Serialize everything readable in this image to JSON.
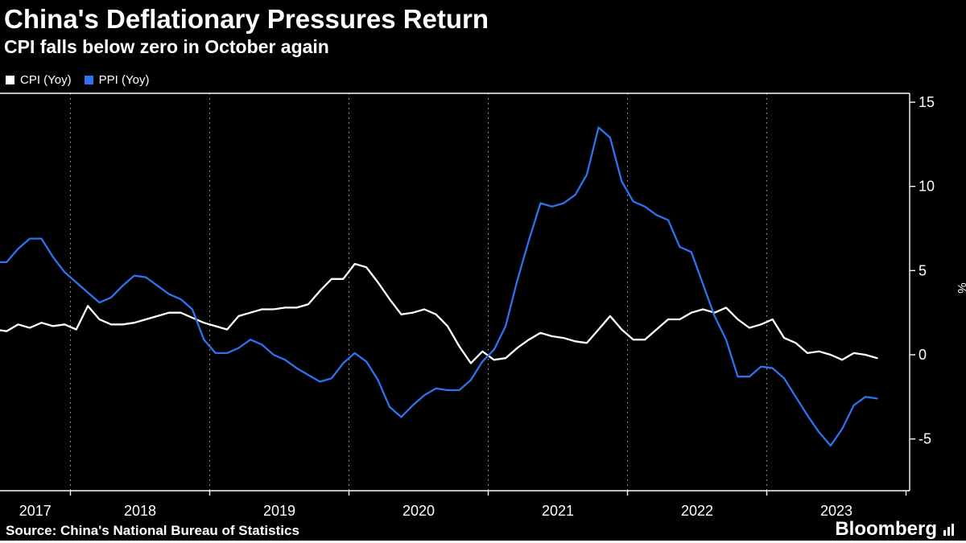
{
  "chart_data": {
    "type": "line",
    "title": "China's Deflationary Pressures Return",
    "subtitle": "CPI falls below zero in October again",
    "x_start": "2017-06",
    "x_end": "2023-10",
    "frequency": "monthly",
    "x_tick_labels": [
      "2017",
      "2018",
      "2019",
      "2020",
      "2021",
      "2022",
      "2023"
    ],
    "y_ticks": [
      15,
      10,
      5,
      0,
      -5
    ],
    "y_axis_label": "%",
    "ylim": [
      -8,
      15.6
    ],
    "grid": "vertical-dashed-year-lines",
    "legend_position": "top-left",
    "series": [
      {
        "name": "CPI (Yoy)",
        "color": "#ffffff",
        "values": [
          1.5,
          1.4,
          1.8,
          1.6,
          1.9,
          1.7,
          1.8,
          1.5,
          2.9,
          2.1,
          1.8,
          1.8,
          1.9,
          2.1,
          2.3,
          2.5,
          2.5,
          2.2,
          1.9,
          1.7,
          1.5,
          2.3,
          2.5,
          2.7,
          2.7,
          2.8,
          2.8,
          3.0,
          3.8,
          4.5,
          4.5,
          5.4,
          5.2,
          4.3,
          3.3,
          2.4,
          2.5,
          2.7,
          2.4,
          1.7,
          0.5,
          -0.5,
          0.2,
          -0.3,
          -0.2,
          0.4,
          0.9,
          1.3,
          1.1,
          1.0,
          0.8,
          0.7,
          1.5,
          2.3,
          1.5,
          0.9,
          0.9,
          1.5,
          2.1,
          2.1,
          2.5,
          2.7,
          2.5,
          2.8,
          2.1,
          1.6,
          1.8,
          2.1,
          1.0,
          0.7,
          0.1,
          0.2,
          0.0,
          -0.3,
          0.1,
          0.0,
          -0.2
        ]
      },
      {
        "name": "PPI (Yoy)",
        "color": "#2e72f0",
        "values": [
          5.5,
          5.5,
          6.3,
          6.9,
          6.9,
          5.8,
          4.9,
          4.3,
          3.7,
          3.1,
          3.4,
          4.1,
          4.7,
          4.6,
          4.1,
          3.6,
          3.3,
          2.7,
          0.9,
          0.1,
          0.1,
          0.4,
          0.9,
          0.6,
          0.0,
          -0.3,
          -0.8,
          -1.2,
          -1.6,
          -1.4,
          -0.5,
          0.1,
          -0.4,
          -1.5,
          -3.1,
          -3.7,
          -3.0,
          -2.4,
          -2.0,
          -2.1,
          -2.1,
          -1.5,
          -0.4,
          0.3,
          1.7,
          4.4,
          6.8,
          9.0,
          8.8,
          9.0,
          9.5,
          10.7,
          13.5,
          12.9,
          10.3,
          9.1,
          8.8,
          8.3,
          8.0,
          6.4,
          6.1,
          4.2,
          2.3,
          0.9,
          -1.3,
          -1.3,
          -0.7,
          -0.8,
          -1.4,
          -2.5,
          -3.6,
          -4.6,
          -5.4,
          -4.4,
          -3.0,
          -2.5,
          -2.6
        ]
      }
    ]
  },
  "footer": {
    "source": "Source: China's National Bureau of Statistics",
    "brand": "Bloomberg"
  },
  "colors": {
    "background": "#000000",
    "foreground": "#ffffff",
    "ppi_blue": "#2e72f0"
  }
}
